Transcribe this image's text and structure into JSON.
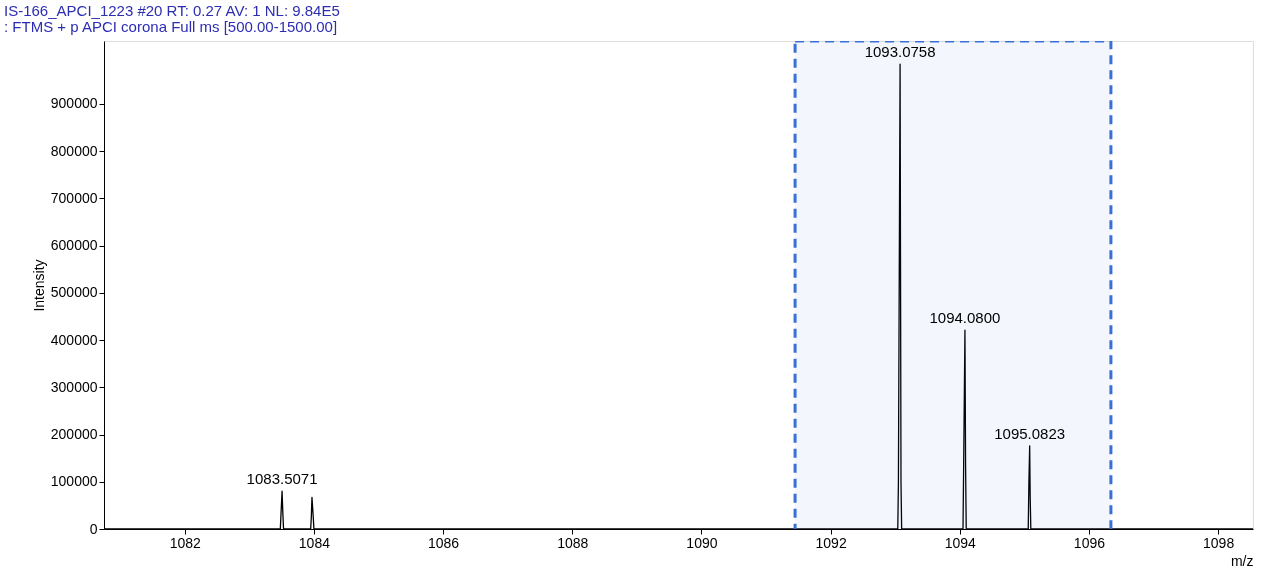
{
  "chart_data": {
    "type": "line",
    "title": "IS-166_APCI_1223 #20   RT: 0.27   AV: 1   NL: 9.84E5",
    "subtitle": ": FTMS + p APCI corona Full ms [500.00-1500.00]",
    "xlabel": "m/z",
    "ylabel": "Intensity",
    "series": [
      {
        "color": "#000000",
        "x": [
          1080.75,
          1083.48,
          1083.49,
          1083.5071,
          1083.52,
          1083.53,
          1083.95,
          1083.96,
          1083.97,
          1083.99,
          1084.0,
          1093.04,
          1093.05,
          1093.0758,
          1093.09,
          1093.1,
          1094.05,
          1094.06,
          1094.08,
          1094.09,
          1094.1,
          1095.06,
          1095.07,
          1095.0823,
          1095.09,
          1095.1,
          1098.54
        ],
        "values": [
          0,
          0,
          30000,
          80000,
          30000,
          0,
          0,
          25000,
          67000,
          25000,
          0,
          0,
          98000,
          984000,
          98000,
          0,
          0,
          134000,
          421000,
          134000,
          0,
          0,
          98000,
          176000,
          70000,
          0,
          0
        ]
      }
    ],
    "xlim": [
      1080.75,
      1098.54
    ],
    "xticks": [
      1082,
      1084,
      1086,
      1088,
      1090,
      1092,
      1094,
      1096,
      1098
    ],
    "ylim": [
      0,
      1033000
    ],
    "yticks": [
      0,
      100000,
      200000,
      300000,
      400000,
      500000,
      600000,
      700000,
      800000,
      900000
    ],
    "grid": false,
    "marker": "none",
    "line_style": "solid",
    "annotations": [
      {
        "text": "1083.5071",
        "x": 1083.5071,
        "y": 80000
      },
      {
        "text": "1093.0758",
        "x": 1093.0758,
        "y": 984000
      },
      {
        "text": "1094.0800",
        "x": 1094.08,
        "y": 421000
      },
      {
        "text": "1095.0823",
        "x": 1095.0823,
        "y": 176000
      }
    ],
    "bands": [
      {
        "axis": "x",
        "from": 1091.45,
        "to": 1096.34,
        "color": "#3a6fd8"
      }
    ]
  }
}
